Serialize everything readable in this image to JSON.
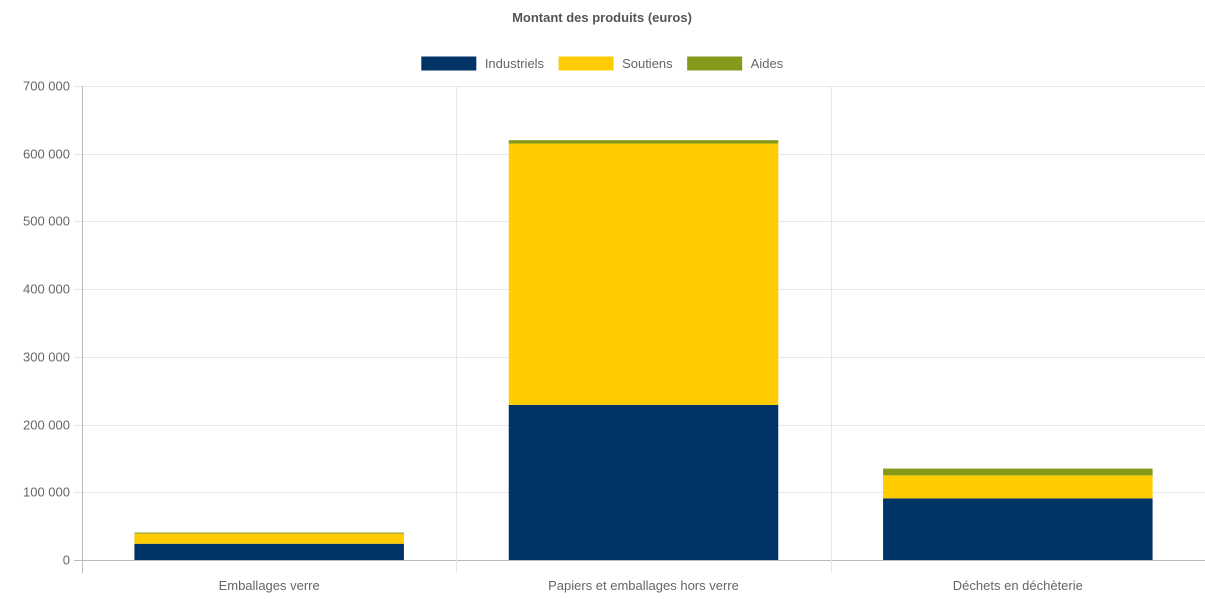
{
  "chart_data": {
    "type": "bar",
    "stacked": true,
    "title": "Montant des produits (euros)",
    "xlabel": "",
    "ylabel": "",
    "categories": [
      "Emballages verre",
      "Papiers et emballages hors verre",
      "Déchets en déchèterie"
    ],
    "series": [
      {
        "name": "Industriels",
        "color": "#003366",
        "values": [
          24000,
          229000,
          91000
        ]
      },
      {
        "name": "Soutiens",
        "color": "#ffcc00",
        "values": [
          15000,
          386000,
          34000
        ]
      },
      {
        "name": "Aides",
        "color": "#86991a",
        "values": [
          1500,
          5000,
          10000
        ]
      }
    ],
    "ylim": [
      0,
      700000
    ],
    "yticks": [
      0,
      100000,
      200000,
      300000,
      400000,
      500000,
      600000,
      700000
    ],
    "ytick_labels": [
      "0",
      "100 000",
      "200 000",
      "300 000",
      "400 000",
      "500 000",
      "600 000",
      "700 000"
    ],
    "grid": true,
    "legend_position": "top-center"
  }
}
